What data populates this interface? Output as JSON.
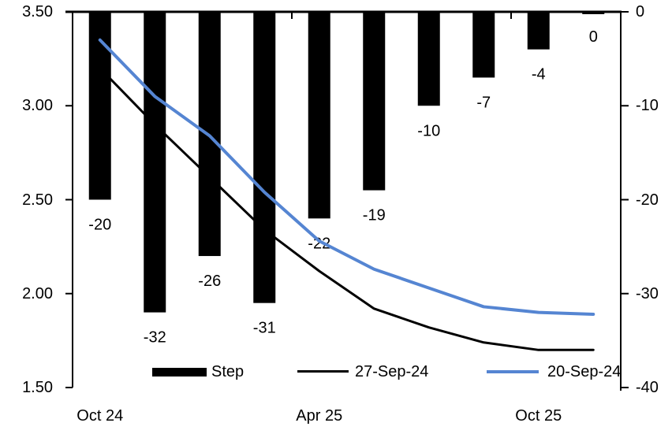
{
  "chart_data": {
    "type": "bar",
    "title": "",
    "subtitle": "",
    "n_slots": 10,
    "x_axis": {
      "tick_labels": [
        {
          "text": "Oct 24",
          "slot": 0
        },
        {
          "text": "Apr 25",
          "slot": 4
        },
        {
          "text": "Oct 25",
          "slot": 8
        }
      ]
    },
    "left_axis": {
      "min": 1.5,
      "max": 3.5,
      "tick_labels": [
        "3.50",
        "3.00",
        "2.50",
        "2.00",
        "1.50"
      ]
    },
    "right_axis": {
      "min": -40,
      "max": 0,
      "tick_labels": [
        "0",
        "-10",
        "-20",
        "-30",
        "-40"
      ]
    },
    "series": [
      {
        "name": "Step",
        "type": "bar",
        "axis": "right",
        "color": "#000000",
        "values": [
          -20,
          -32,
          -26,
          -31,
          -22,
          -19,
          -10,
          -7,
          -4,
          0
        ],
        "data_labels": [
          "-20",
          "-32",
          "-26",
          "-31",
          "-22",
          "-19",
          "-10",
          "-7",
          "-4",
          "0"
        ]
      },
      {
        "name": "27-Sep-24",
        "type": "line",
        "axis": "left",
        "color": "#000000",
        "values": [
          3.2,
          2.9,
          2.62,
          2.34,
          2.12,
          1.92,
          1.82,
          1.74,
          1.7,
          1.7
        ]
      },
      {
        "name": "20-Sep-24",
        "type": "line",
        "axis": "left",
        "color": "#5585D2",
        "values": [
          3.35,
          3.05,
          2.84,
          2.54,
          2.28,
          2.13,
          2.03,
          1.93,
          1.9,
          1.89
        ]
      }
    ],
    "legend": {
      "position": "bottom",
      "entries": [
        "Step",
        "27-Sep-24",
        "20-Sep-24"
      ]
    },
    "grid": "off"
  }
}
